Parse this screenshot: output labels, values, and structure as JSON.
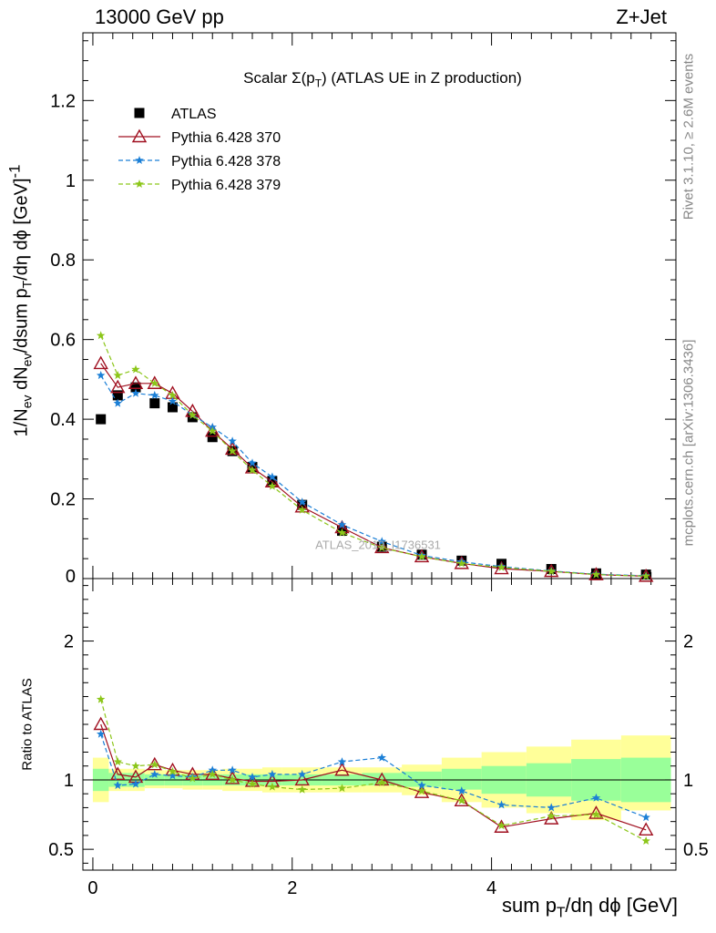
{
  "header": {
    "left": "13000 GeV pp",
    "right": "Z+Jet"
  },
  "notes": {
    "rivet": "Rivet 3.1.10, ≥ 2.6M events",
    "mcplots": "mcplots.cern.ch [arXiv:1306.3436]",
    "watermark": "ATLAS_2019_I1736531"
  },
  "colors": {
    "atlas": "#000000",
    "p370": "#a01020",
    "p378": "#1b7fd6",
    "p379": "#8cc61a",
    "band_inner": "#99ff99",
    "band_outer": "#ffff99"
  },
  "chart_data": [
    {
      "type": "scatter",
      "panel": "main",
      "title": "Scalar Σ(pT) (ATLAS UE in Z production)",
      "xlabel": "sum pT/dη dϕ [GeV]",
      "ylabel": "1/Nev dNev/dsum pT/dη dϕ [GeV]^-1",
      "xlim": [
        -0.1,
        5.85
      ],
      "ylim": [
        0,
        1.37
      ],
      "ytick_values": [
        0.2,
        0.4,
        0.6,
        0.8,
        1,
        1.2
      ],
      "ytick_labels": [
        "0.2",
        "0.4",
        "0.6",
        "0.8",
        "1",
        "1.2"
      ],
      "y_zero_label": "0",
      "legend_position": "top-left",
      "x": [
        0.08,
        0.25,
        0.43,
        0.62,
        0.8,
        1.0,
        1.2,
        1.4,
        1.6,
        1.8,
        2.1,
        2.5,
        2.9,
        3.3,
        3.7,
        4.1,
        4.6,
        5.05,
        5.55
      ],
      "series": [
        {
          "name": "ATLAS",
          "marker": "square",
          "values": [
            0.4,
            0.46,
            0.48,
            0.44,
            0.43,
            0.405,
            0.355,
            0.32,
            0.28,
            0.245,
            0.185,
            0.12,
            0.08,
            0.06,
            0.045,
            0.037,
            0.024,
            0.013,
            0.01
          ]
        },
        {
          "name": "Pythia 6.428 370",
          "marker": "triangle",
          "values": [
            0.54,
            0.48,
            0.49,
            0.49,
            0.465,
            0.42,
            0.37,
            0.325,
            0.278,
            0.243,
            0.18,
            0.128,
            0.078,
            0.055,
            0.038,
            0.025,
            0.018,
            0.01,
            0.006
          ]
        },
        {
          "name": "Pythia 6.428 378",
          "marker": "star",
          "values": [
            0.51,
            0.44,
            0.465,
            0.46,
            0.445,
            0.41,
            0.38,
            0.345,
            0.29,
            0.255,
            0.192,
            0.135,
            0.093,
            0.058,
            0.042,
            0.03,
            0.019,
            0.011,
            0.007
          ]
        },
        {
          "name": "Pythia 6.428 379",
          "marker": "star",
          "values": [
            0.61,
            0.51,
            0.525,
            0.49,
            0.46,
            0.41,
            0.37,
            0.32,
            0.272,
            0.232,
            0.172,
            0.115,
            0.077,
            0.055,
            0.038,
            0.028,
            0.018,
            0.01,
            0.006
          ]
        }
      ]
    },
    {
      "type": "scatter",
      "panel": "ratio",
      "xlabel": "sum pT/dη dϕ [GeV]",
      "ylabel": "Ratio to ATLAS",
      "xlim": [
        -0.1,
        5.85
      ],
      "ylim": [
        0.35,
        2.45
      ],
      "ytick_values": [
        0.5,
        1,
        2
      ],
      "ytick_labels": [
        "0.5",
        "1",
        "2"
      ],
      "xtick_values": [
        0,
        2,
        4
      ],
      "xtick_labels": [
        "0",
        "2",
        "4"
      ],
      "x": [
        0.08,
        0.25,
        0.43,
        0.62,
        0.8,
        1.0,
        1.2,
        1.4,
        1.6,
        1.8,
        2.1,
        2.5,
        2.9,
        3.3,
        3.7,
        4.1,
        4.6,
        5.05,
        5.55
      ],
      "bin_edges": [
        0.0,
        0.16,
        0.34,
        0.52,
        0.72,
        0.9,
        1.1,
        1.3,
        1.5,
        1.7,
        1.9,
        2.3,
        2.7,
        3.1,
        3.5,
        3.9,
        4.35,
        4.8,
        5.3,
        5.8
      ],
      "band_inner": {
        "lo": [
          0.92,
          0.95,
          0.95,
          0.96,
          0.96,
          0.96,
          0.96,
          0.96,
          0.96,
          0.96,
          0.96,
          0.96,
          0.96,
          0.95,
          0.93,
          0.9,
          0.88,
          0.85,
          0.84
        ],
        "hi": [
          1.08,
          1.05,
          1.05,
          1.04,
          1.04,
          1.04,
          1.04,
          1.04,
          1.04,
          1.04,
          1.04,
          1.04,
          1.05,
          1.06,
          1.08,
          1.1,
          1.12,
          1.15,
          1.16
        ]
      },
      "band_outer": {
        "lo": [
          0.84,
          0.92,
          0.92,
          0.94,
          0.94,
          0.93,
          0.93,
          0.92,
          0.92,
          0.91,
          0.91,
          0.91,
          0.91,
          0.89,
          0.84,
          0.8,
          0.76,
          0.71,
          0.78
        ],
        "hi": [
          1.16,
          1.08,
          1.08,
          1.07,
          1.07,
          1.07,
          1.07,
          1.08,
          1.08,
          1.09,
          1.09,
          1.09,
          1.09,
          1.11,
          1.16,
          1.2,
          1.24,
          1.29,
          1.32
        ]
      },
      "series": [
        {
          "name": "Pythia 6.428 370",
          "marker": "triangle",
          "values": [
            1.4,
            1.04,
            1.02,
            1.11,
            1.07,
            1.04,
            1.04,
            1.01,
            0.99,
            0.99,
            1.0,
            1.07,
            1.0,
            0.91,
            0.85,
            0.66,
            0.72,
            0.76,
            0.64
          ]
        },
        {
          "name": "Pythia 6.428 378",
          "marker": "star",
          "values": [
            1.33,
            0.96,
            0.97,
            1.04,
            1.03,
            1.02,
            1.07,
            1.07,
            1.02,
            1.04,
            1.04,
            1.13,
            1.16,
            0.96,
            0.92,
            0.82,
            0.8,
            0.87,
            0.73
          ]
        },
        {
          "name": "Pythia 6.428 379",
          "marker": "star",
          "values": [
            1.58,
            1.13,
            1.1,
            1.11,
            1.06,
            1.01,
            1.04,
            1.0,
            0.97,
            0.95,
            0.93,
            0.94,
            0.98,
            0.92,
            0.85,
            0.67,
            0.74,
            0.75,
            0.56
          ]
        }
      ]
    }
  ]
}
